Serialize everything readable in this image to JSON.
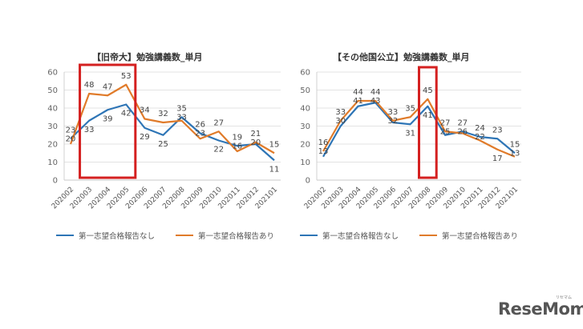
{
  "chart_data": [
    {
      "type": "line",
      "title": "【旧帝大】勉強講義数_単月",
      "xlabel": "",
      "ylabel": "",
      "ylim": [
        0,
        60
      ],
      "yticks": [
        0,
        10,
        20,
        30,
        40,
        50,
        60
      ],
      "grid": true,
      "legend_position": "bottom",
      "categories": [
        "202002",
        "202003",
        "202004",
        "202005",
        "202006",
        "202007",
        "202008",
        "202009",
        "202010",
        "202011",
        "202012",
        "202101"
      ],
      "series": [
        {
          "name": "第一志望合格報告なし",
          "color": "#2e75b6",
          "values": [
            23,
            33,
            39,
            42,
            29,
            25,
            35,
            26,
            22,
            19,
            20,
            11
          ]
        },
        {
          "name": "第一志望合格報告あり",
          "color": "#e07b2a",
          "values": [
            20,
            48,
            47,
            53,
            34,
            32,
            33,
            23,
            27,
            16,
            21,
            15
          ]
        }
      ],
      "annotations": [
        {
          "type": "highlight-box",
          "color": "#d42020",
          "from": "202003",
          "to": "202005"
        }
      ]
    },
    {
      "type": "line",
      "title": "【その他国公立】勉強講義数_単月",
      "xlabel": "",
      "ylabel": "",
      "ylim": [
        0,
        60
      ],
      "yticks": [
        0,
        10,
        20,
        30,
        40,
        50,
        60
      ],
      "grid": true,
      "legend_position": "bottom",
      "categories": [
        "202002",
        "202003",
        "202004",
        "202005",
        "202006",
        "202007",
        "202008",
        "202009",
        "202010",
        "202011",
        "202012",
        "202101"
      ],
      "series": [
        {
          "name": "第一志望合格報告なし",
          "color": "#2e75b6",
          "values": [
            13,
            30,
            41,
            43,
            32,
            31,
            41,
            25,
            27,
            24,
            23,
            15
          ]
        },
        {
          "name": "第一志望合格報告あり",
          "color": "#e07b2a",
          "values": [
            16,
            33,
            44,
            44,
            33,
            35,
            45,
            27,
            26,
            22,
            17,
            13
          ]
        }
      ],
      "annotations": [
        {
          "type": "highlight-box",
          "color": "#d42020",
          "from": "202008",
          "to": "202008"
        }
      ]
    }
  ],
  "charts": {
    "left": {
      "title": "【旧帝大】勉強講義数_単月",
      "legend": [
        "第一志望合格報告なし",
        "第一志望合格報告あり"
      ]
    },
    "right": {
      "title": "【その他国公立】勉強講義数_単月",
      "legend": [
        "第一志望合格報告なし",
        "第一志望合格報告あり"
      ]
    }
  },
  "logo": {
    "text": "ReseMom",
    "sub": "リセマム"
  }
}
